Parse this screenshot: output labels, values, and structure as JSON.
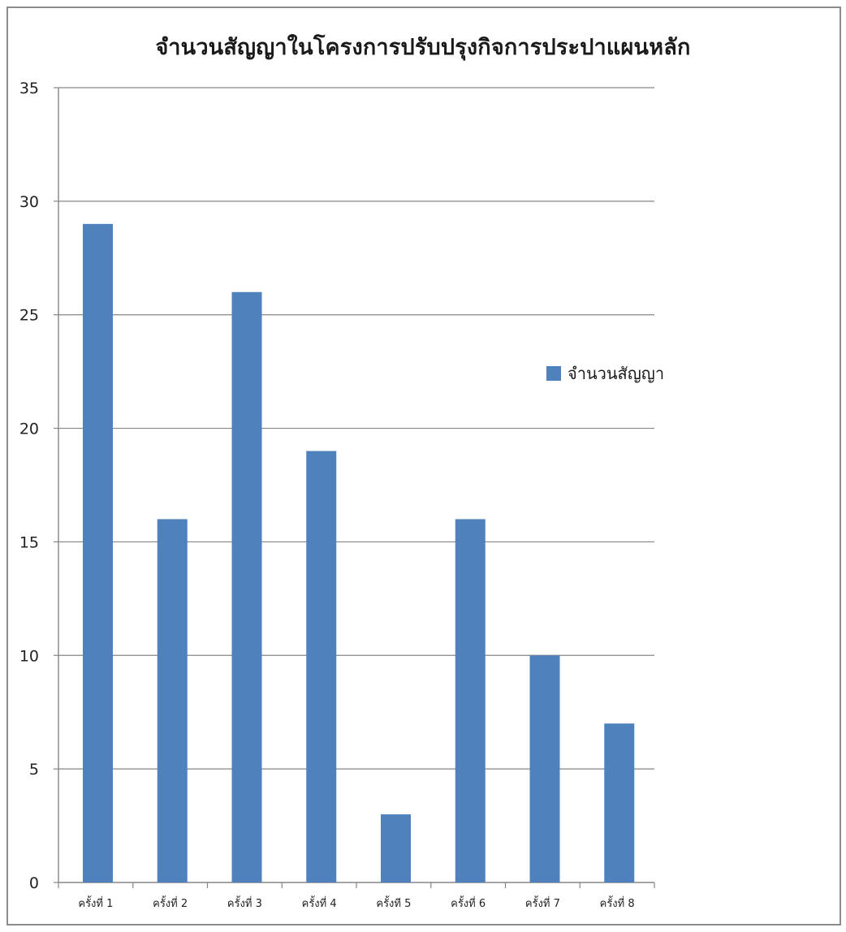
{
  "chart_data": {
    "type": "bar",
    "title": "จำนวนสัญญาในโครงการปรับปรุงกิจการประปาแผนหลัก",
    "categories": [
      "ครั้งที่ 1",
      "ครั้งที่ 2",
      "ครั้งที่ 3",
      "ครั้งที่ 4",
      "ครั้งที 5",
      "ครั้งที่ 6",
      "ครั้งที่ 7",
      "ครั้งที่ 8"
    ],
    "series": [
      {
        "name": "จำนวนสัญญา",
        "values": [
          29,
          16,
          26,
          19,
          3,
          16,
          10,
          7
        ]
      }
    ],
    "ylim": [
      0,
      35
    ],
    "yticks": [
      0,
      5,
      10,
      15,
      20,
      25,
      30,
      35
    ],
    "grid": true,
    "legend_position": "right",
    "colors": {
      "bar": "#4f81bd",
      "grid": "#868686"
    }
  }
}
